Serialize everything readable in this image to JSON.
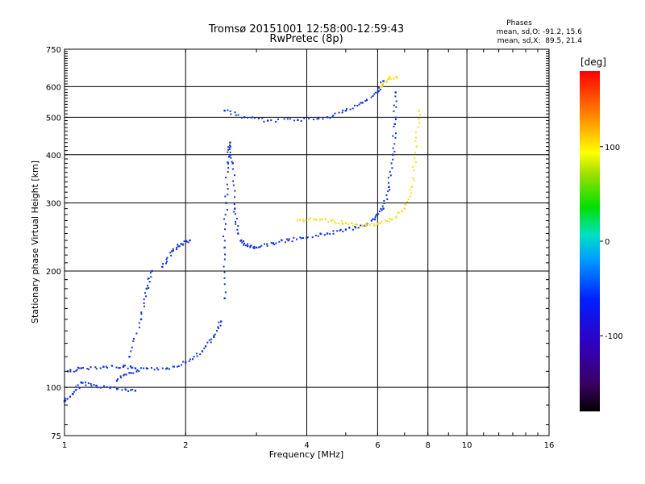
{
  "chart_data": {
    "type": "scatter",
    "title": "Tromsø 20151001 12:58:00-12:59:43",
    "subtitle": "RwPretec (8p)",
    "xlabel": "Frequency [MHz]",
    "ylabel": "Stationary phase Virtual Height [km]",
    "xscale": "log",
    "yscale": "log",
    "xlim": [
      1,
      16
    ],
    "ylim": [
      75,
      750
    ],
    "xticks": [
      1,
      2,
      4,
      6,
      8,
      10,
      16
    ],
    "xtick_labels": [
      "1",
      "2",
      "4",
      "6",
      "8",
      "10",
      "16"
    ],
    "yticks": [
      75,
      100,
      200,
      300,
      400,
      500,
      600,
      750
    ],
    "ytick_labels": [
      "75",
      "100",
      "200",
      "300",
      "400",
      "500",
      "600",
      "750"
    ],
    "grid": true,
    "stats": {
      "heading": "Phases",
      "line_o": "mean, sd,O: -91.2, 15.6",
      "line_x": "mean, sd,X:  89.5, 21.4"
    },
    "colorbar": {
      "label": "[deg]",
      "colormap": "rainbow",
      "range": [
        -180,
        180
      ],
      "ticks": [
        100,
        0,
        -100
      ],
      "tick_labels": [
        "100",
        "0",
        "-100"
      ]
    },
    "series": [
      {
        "mode": "O",
        "color_deg": -100,
        "color": "#1030e0",
        "traces": [
          [
            [
              1.0,
              92
            ],
            [
              1.05,
              96
            ],
            [
              1.1,
              103
            ],
            [
              1.2,
              101
            ],
            [
              1.35,
              99
            ],
            [
              1.5,
              98
            ]
          ],
          [
            [
              1.02,
              110
            ],
            [
              1.1,
              112
            ],
            [
              1.25,
              113
            ],
            [
              1.4,
              113
            ],
            [
              1.5,
              112
            ]
          ],
          [
            [
              1.35,
              104
            ],
            [
              1.45,
              109
            ],
            [
              1.6,
              112
            ],
            [
              1.8,
              112
            ],
            [
              2.0,
              116
            ],
            [
              2.2,
              124
            ],
            [
              2.35,
              135
            ],
            [
              2.45,
              148
            ]
          ],
          [
            [
              1.45,
              120
            ],
            [
              1.55,
              150
            ],
            [
              1.6,
              180
            ],
            [
              1.65,
              200
            ]
          ],
          [
            [
              1.75,
              205
            ],
            [
              1.85,
              225
            ],
            [
              1.95,
              235
            ],
            [
              2.05,
              240
            ]
          ],
          [
            [
              2.5,
              170
            ],
            [
              2.5,
              230
            ],
            [
              2.52,
              300
            ],
            [
              2.55,
              380
            ],
            [
              2.58,
              430
            ],
            [
              2.62,
              380
            ],
            [
              2.65,
              290
            ],
            [
              2.7,
              250
            ]
          ],
          [
            [
              2.75,
              240
            ],
            [
              2.85,
              232
            ],
            [
              3.0,
              230
            ],
            [
              3.3,
              236
            ],
            [
              3.6,
              240
            ],
            [
              4.0,
              244
            ],
            [
              4.5,
              250
            ],
            [
              5.0,
              256
            ],
            [
              5.5,
              262
            ],
            [
              5.9,
              272
            ],
            [
              6.2,
              290
            ],
            [
              6.4,
              330
            ],
            [
              6.55,
              400
            ],
            [
              6.62,
              480
            ],
            [
              6.65,
              580
            ]
          ],
          [
            [
              2.5,
              520
            ],
            [
              2.8,
              500
            ],
            [
              3.2,
              490
            ],
            [
              3.8,
              492
            ],
            [
              4.5,
              500
            ],
            [
              5.0,
              520
            ],
            [
              5.5,
              545
            ],
            [
              6.0,
              580
            ],
            [
              6.2,
              620
            ]
          ]
        ]
      },
      {
        "mode": "X",
        "color_deg": 90,
        "color": "#f0e020",
        "traces": [
          [
            [
              3.8,
              270
            ],
            [
              4.2,
              272
            ],
            [
              4.6,
              270
            ],
            [
              5.0,
              266
            ],
            [
              5.5,
              262
            ],
            [
              6.0,
              265
            ],
            [
              6.5,
              272
            ],
            [
              7.0,
              290
            ],
            [
              7.3,
              330
            ],
            [
              7.5,
              420
            ],
            [
              7.6,
              520
            ]
          ],
          [
            [
              6.1,
              600
            ],
            [
              6.4,
              630
            ],
            [
              6.7,
              635
            ]
          ]
        ]
      }
    ]
  }
}
